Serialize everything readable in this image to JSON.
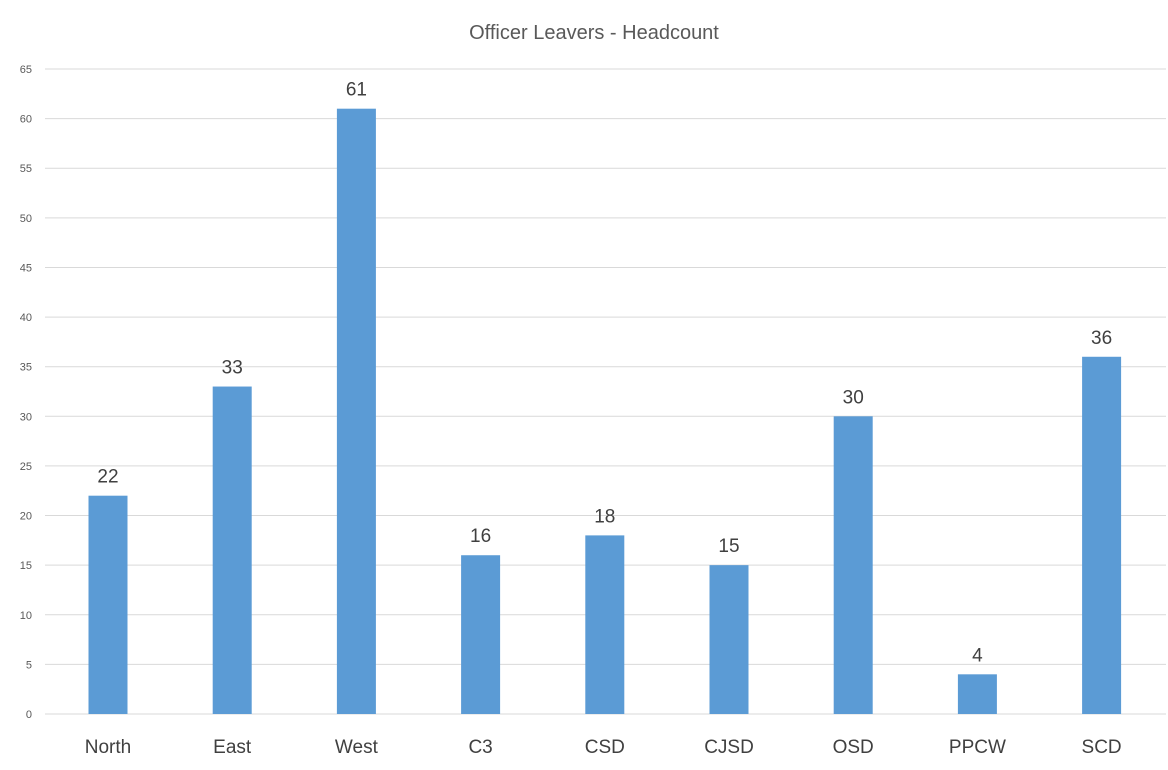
{
  "chart_data": {
    "type": "bar",
    "title": "Officer Leavers - Headcount",
    "xlabel": "",
    "ylabel": "",
    "categories": [
      "North",
      "East",
      "West",
      "C3",
      "CSD",
      "CJSD",
      "OSD",
      "PPCW",
      "SCD"
    ],
    "values": [
      22,
      33,
      61,
      16,
      18,
      15,
      30,
      4,
      36
    ],
    "value_labels": [
      "22",
      "33",
      "61",
      "16",
      "18",
      "15",
      "30",
      "4",
      "36"
    ],
    "ylim": [
      0,
      65
    ],
    "yticks": [
      "0",
      "5",
      "10",
      "15",
      "20",
      "25",
      "30",
      "35",
      "40",
      "45",
      "50",
      "55",
      "60",
      "65"
    ],
    "grid": true,
    "legend": "none",
    "bar_color": "#5B9BD5",
    "grid_color": "#D9D9D9"
  }
}
